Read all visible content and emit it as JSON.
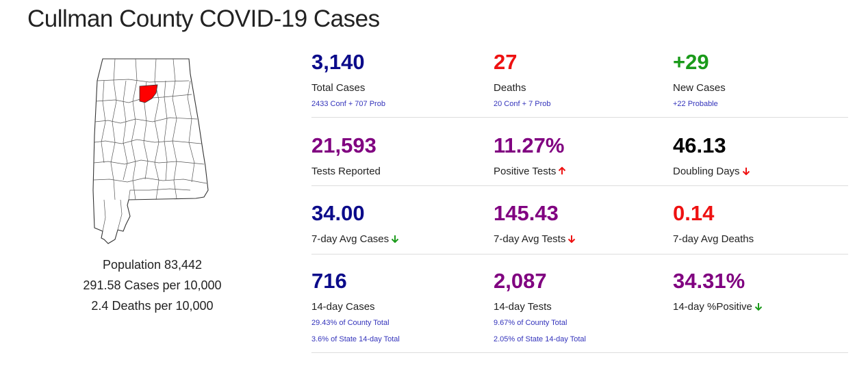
{
  "title": "Cullman County COVID-19 Cases",
  "map": {
    "highlight_color": "#ff0000",
    "county": "Cullman"
  },
  "population": {
    "line1": "Population 83,442",
    "line2": "291.58 Cases per 10,000",
    "line3": "2.4 Deaths per 10,000"
  },
  "colors": {
    "navy": "#0b0b8a",
    "red": "#ee1111",
    "green": "#1a9a1a",
    "purple": "#800080",
    "black": "#000000",
    "link": "#3333bb"
  },
  "stats": {
    "total_cases": {
      "value": "3,140",
      "label": "Total Cases",
      "sub": "2433 Conf + 707 Prob"
    },
    "deaths": {
      "value": "27",
      "label": "Deaths",
      "sub": "20 Conf + 7 Prob"
    },
    "new_cases": {
      "value": "+29",
      "label": "New Cases",
      "sub": "+22 Probable"
    },
    "tests_reported": {
      "value": "21,593",
      "label": "Tests Reported"
    },
    "positive_tests": {
      "value": "11.27%",
      "label": "Positive Tests",
      "trend": "up-red-arrow-icon"
    },
    "doubling_days": {
      "value": "46.13",
      "label": "Doubling Days",
      "trend": "down-red-arrow-icon"
    },
    "avg_cases_7day": {
      "value": "34.00",
      "label": "7-day Avg Cases",
      "trend": "down-green-arrow-icon"
    },
    "avg_tests_7day": {
      "value": "145.43",
      "label": "7-day Avg Tests",
      "trend": "down-red-arrow-icon"
    },
    "avg_deaths_7day": {
      "value": "0.14",
      "label": "7-day Avg Deaths"
    },
    "cases_14day": {
      "value": "716",
      "label": "14-day Cases",
      "sub1": "29.43% of County Total",
      "sub2": "3.6% of State 14-day Total"
    },
    "tests_14day": {
      "value": "2,087",
      "label": "14-day Tests",
      "sub1": "9.67% of County Total",
      "sub2": "2.05% of State 14-day Total"
    },
    "positive_14day": {
      "value": "34.31%",
      "label": "14-day %Positive",
      "trend": "down-green-arrow-icon"
    }
  }
}
